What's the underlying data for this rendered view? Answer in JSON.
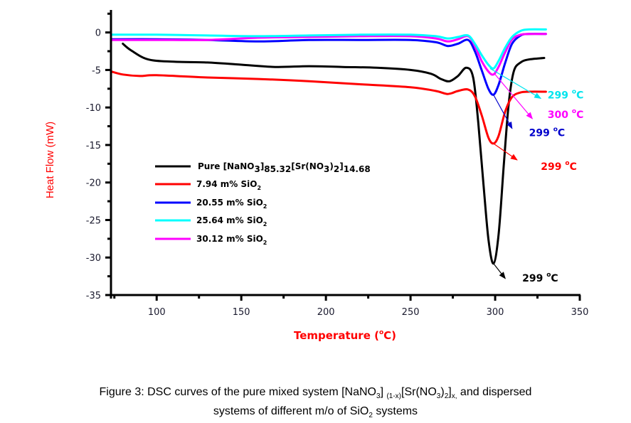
{
  "chart_data": {
    "type": "line",
    "title": "",
    "xlabel": "Temperature (°C)",
    "xlabel_parts": {
      "pre": "Temperature (",
      "deg": "o",
      "post": "C)"
    },
    "ylabel": "Heat Flow (mW)",
    "xlim": [
      73,
      350
    ],
    "ylim": [
      -35,
      3
    ],
    "xticks": [
      100,
      150,
      200,
      250,
      300,
      350
    ],
    "yticks": [
      0,
      -5,
      -10,
      -15,
      -20,
      -25,
      -30,
      -35
    ],
    "grid": false,
    "legend_position": "center-left",
    "series": [
      {
        "name": "Pure [NaNO3]85.32[Sr(NO3)2]14.68",
        "color": "#000000",
        "legend": {
          "base": "Pure [NaNO",
          "parts": [
            [
              "sub",
              "3"
            ],
            [
              "t",
              "]"
            ],
            [
              "sub",
              "85.32"
            ],
            [
              "t",
              "[Sr(NO"
            ],
            [
              "sub",
              "3"
            ],
            [
              "t",
              ")"
            ],
            [
              "sub",
              "2"
            ],
            [
              "t",
              "]"
            ],
            [
              "sub",
              "14.68"
            ]
          ]
        },
        "x": [
          80,
          85,
          95,
          110,
          130,
          150,
          170,
          190,
          210,
          230,
          250,
          262,
          268,
          273,
          278,
          283,
          287,
          290,
          293,
          296,
          299,
          302,
          305,
          308,
          311,
          315,
          320,
          329
        ],
        "y": [
          -1.5,
          -2.4,
          -3.6,
          -3.9,
          -4.0,
          -4.3,
          -4.6,
          -4.5,
          -4.6,
          -4.7,
          -5.0,
          -5.5,
          -6.2,
          -6.5,
          -5.8,
          -4.7,
          -6.0,
          -12.0,
          -20.0,
          -27.5,
          -30.8,
          -27.0,
          -18.0,
          -9.5,
          -5.2,
          -4.0,
          -3.6,
          -3.4
        ]
      },
      {
        "name": "7.94 m% SiO2",
        "color": "#ff0000",
        "legend": {
          "base": "7.94 m%  SiO",
          "parts": [
            [
              "sub",
              "2"
            ]
          ]
        },
        "x": [
          73,
          80,
          90,
          100,
          130,
          160,
          190,
          220,
          250,
          265,
          272,
          278,
          284,
          288,
          292,
          296,
          299,
          302,
          306,
          310,
          315,
          320,
          330
        ],
        "y": [
          -5.2,
          -5.6,
          -5.8,
          -5.7,
          -6.0,
          -6.2,
          -6.5,
          -6.9,
          -7.3,
          -7.8,
          -8.2,
          -7.8,
          -7.6,
          -8.5,
          -11.0,
          -14.0,
          -14.8,
          -13.8,
          -10.5,
          -8.6,
          -8.0,
          -7.9,
          -7.9
        ]
      },
      {
        "name": "20.55 m% SiO2",
        "color": "#0000ff",
        "legend": {
          "base": "20.55 m% SiO",
          "parts": [
            [
              "sub",
              "2"
            ]
          ]
        },
        "x": [
          73,
          100,
          130,
          160,
          190,
          220,
          250,
          265,
          272,
          278,
          284,
          288,
          292,
          296,
          299,
          302,
          306,
          310,
          315,
          320,
          330
        ],
        "y": [
          -0.9,
          -0.9,
          -1.0,
          -1.2,
          -1.0,
          -1.0,
          -1.0,
          -1.3,
          -1.8,
          -1.5,
          -1.0,
          -2.5,
          -5.0,
          -7.5,
          -8.3,
          -7.0,
          -4.0,
          -1.5,
          -0.4,
          -0.2,
          -0.2
        ]
      },
      {
        "name": "25.64 m% SiO2",
        "color": "#00ffff",
        "legend": {
          "base": "25.64 m%  SiO",
          "parts": [
            [
              "sub",
              "2"
            ]
          ]
        },
        "x": [
          73,
          100,
          130,
          160,
          190,
          220,
          250,
          265,
          272,
          278,
          284,
          288,
          292,
          296,
          299,
          302,
          306,
          310,
          315,
          320,
          330
        ],
        "y": [
          -0.3,
          -0.3,
          -0.4,
          -0.5,
          -0.4,
          -0.3,
          -0.3,
          -0.5,
          -0.8,
          -0.6,
          -0.4,
          -1.5,
          -3.0,
          -4.3,
          -4.8,
          -3.8,
          -2.0,
          -0.6,
          0.2,
          0.4,
          0.4
        ]
      },
      {
        "name": "30.12 m% SiO2",
        "color": "#ff00ff",
        "legend": {
          "base": "30.12 m%  SiO",
          "parts": [
            [
              "sub",
              "2"
            ]
          ]
        },
        "x": [
          73,
          100,
          130,
          160,
          190,
          220,
          250,
          265,
          272,
          278,
          284,
          288,
          292,
          296,
          299,
          302,
          306,
          310,
          315,
          320,
          330
        ],
        "y": [
          -1.0,
          -1.0,
          -1.0,
          -0.7,
          -0.6,
          -0.5,
          -0.5,
          -0.8,
          -1.2,
          -0.9,
          -0.5,
          -1.8,
          -3.8,
          -5.2,
          -5.6,
          -4.6,
          -2.6,
          -0.9,
          -0.3,
          -0.2,
          -0.2
        ]
      }
    ],
    "annotations": [
      {
        "text": "299 ",
        "deg": "o",
        "unit": "C",
        "color": "#00e5ee",
        "from": [
          297,
          -4.8
        ],
        "to": [
          327,
          -8.8
        ],
        "label_at": [
          331,
          -8.8
        ]
      },
      {
        "text": "300 ",
        "deg": "o",
        "unit": "C",
        "color": "#ff00ff",
        "from": [
          300,
          -5.6
        ],
        "to": [
          322,
          -11.5
        ],
        "label_at": [
          331,
          -11.4
        ]
      },
      {
        "text": "299 ",
        "deg": "o",
        "unit": "C",
        "color": "#0000cc",
        "from": [
          299,
          -8.3
        ],
        "to": [
          310,
          -12.8
        ],
        "label_at": [
          320,
          -13.8
        ]
      },
      {
        "text": "299 ",
        "deg": "o",
        "unit": "C",
        "color": "#ff0000",
        "from": [
          299,
          -14.8
        ],
        "to": [
          313,
          -17.0
        ],
        "label_at": [
          327,
          -18.3
        ]
      },
      {
        "text": "299 ",
        "deg": "o",
        "unit": "C",
        "color": "#000000",
        "from": [
          299,
          -30.8
        ],
        "to": [
          306,
          -32.8
        ],
        "label_at": [
          316,
          -33.2
        ]
      }
    ]
  },
  "caption": {
    "line1_a": "Figure 3: DSC curves of the pure mixed system [NaNO",
    "line1_sub1": "3",
    "line1_b": "] ",
    "line1_sub2": "(1-x)",
    "line1_c": "[Sr(NO",
    "line1_sub3": "3",
    "line1_d": ")",
    "line1_sub4": "2",
    "line1_e": "]",
    "line1_sub5": "x,",
    "line1_f": "  and  dispersed",
    "line2_a": "systems of different m/o of SiO",
    "line2_sub": "2",
    "line2_b": " systems"
  }
}
